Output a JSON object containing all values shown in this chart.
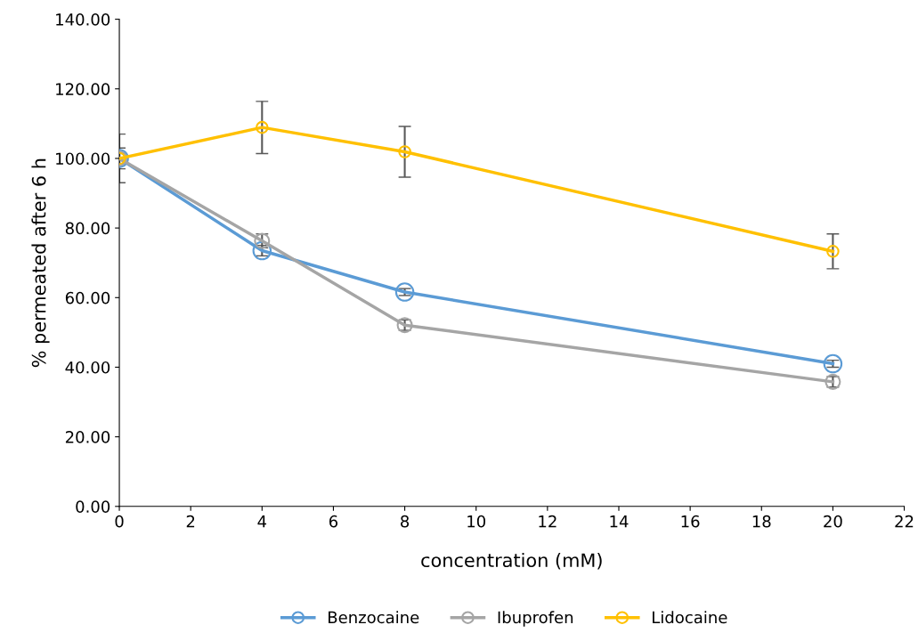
{
  "chart_data": {
    "type": "line",
    "xlabel": "concentration (mM)",
    "ylabel": "% permeated after 6 h",
    "x": [
      0,
      4,
      8,
      20
    ],
    "series": [
      {
        "name": "Benzocaine",
        "color": "#5b9bd5",
        "values": [
          100,
          73.5,
          61.6,
          41.0
        ],
        "errors": [
          1.5,
          1.5,
          1,
          1
        ]
      },
      {
        "name": "Ibuprofen",
        "color": "#a5a5a5",
        "values": [
          100,
          76.3,
          52.1,
          35.8
        ],
        "errors": [
          3,
          2,
          1.5,
          1.5
        ]
      },
      {
        "name": "Lidocaine",
        "color": "#ffc000",
        "values": [
          100,
          108.9,
          101.9,
          73.3
        ],
        "errors": [
          7,
          7.5,
          7.3,
          5
        ]
      }
    ],
    "xlim": [
      0,
      22
    ],
    "xticks": [
      0,
      2,
      4,
      6,
      8,
      10,
      12,
      14,
      16,
      18,
      20,
      22
    ],
    "ylim": [
      0,
      140
    ],
    "yticks": [
      {
        "value": 0,
        "label": "0.00"
      },
      {
        "value": 20,
        "label": "20.00"
      },
      {
        "value": 40,
        "label": "40.00"
      },
      {
        "value": 60,
        "label": "60.00"
      },
      {
        "value": 80,
        "label": "80.00"
      },
      {
        "value": 100,
        "label": "100.00"
      },
      {
        "value": 120,
        "label": "120.00"
      },
      {
        "value": 140,
        "label": "140.00"
      }
    ],
    "grid": false,
    "legend": "bottom",
    "marker": "circle",
    "line_style": "solid"
  }
}
